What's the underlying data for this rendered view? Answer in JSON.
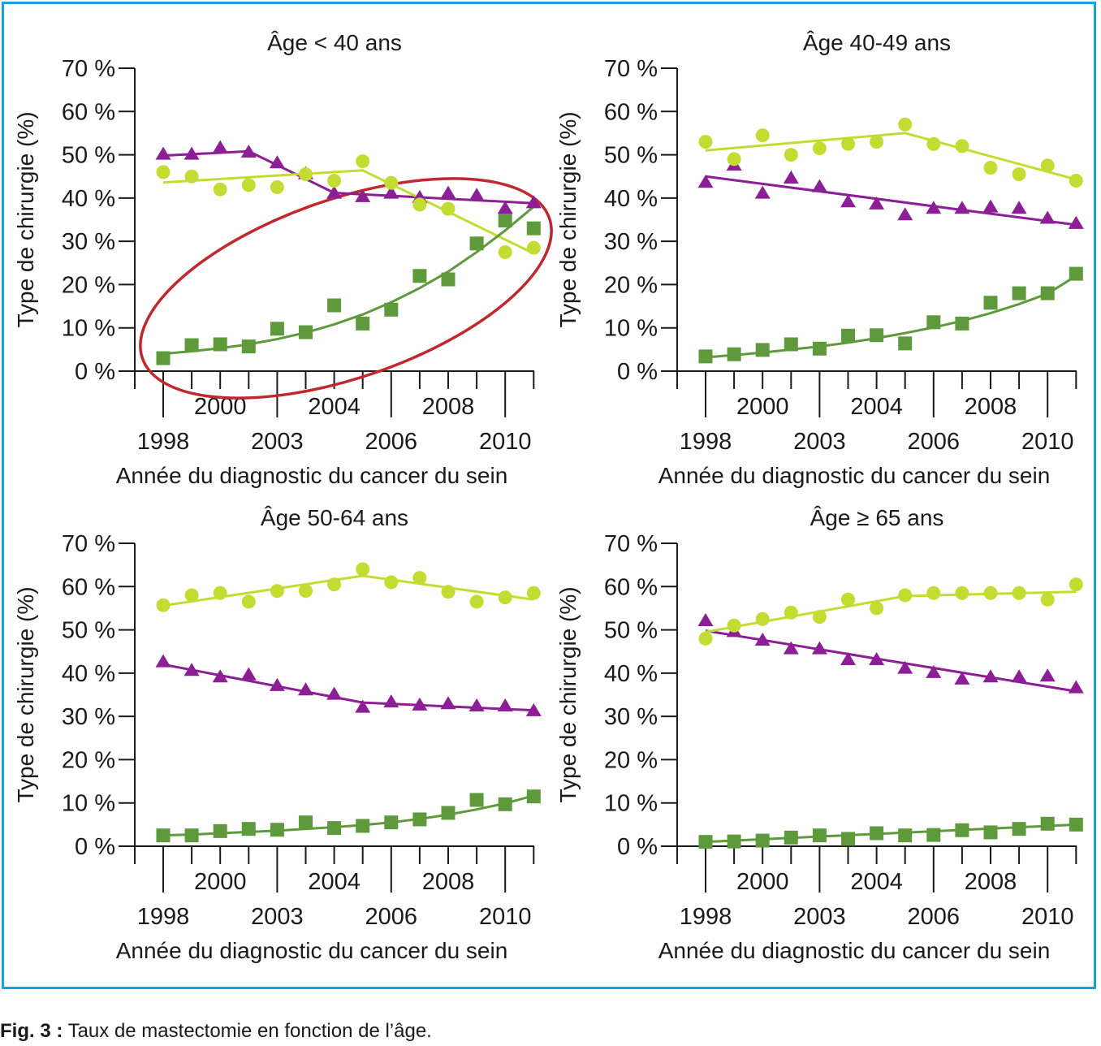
{
  "figure": {
    "caption_label": "Fig. 3 :",
    "caption_text": " Taux de mastectomie en fonction de l’âge."
  },
  "colors": {
    "frame": "#1aa0dd",
    "purple": "#8c1e96",
    "lime": "#c3dc32",
    "green": "#5e9a3c",
    "highlight_ellipse": "#c0282d",
    "axis": "#1a1a1a"
  },
  "chart_data": [
    {
      "type": "scatter",
      "title": "Âge < 40 ans",
      "ylabel": "Type de chirurgie (%)",
      "xlabel": "Année du diagnostic du cancer du sein",
      "ylim": [
        0,
        70
      ],
      "xlim": [
        1997,
        2011
      ],
      "yticks": [
        "0 %",
        "10 %",
        "20 %",
        "30 %",
        "40 %",
        "50 %",
        "60 %",
        "70 %"
      ],
      "xtick_labels_upper": [
        "2000",
        "2004",
        "2008"
      ],
      "xtick_labels_lower": [
        "1998",
        "2003",
        "2006",
        "2010"
      ],
      "x": [
        1998,
        1999,
        2000,
        2001,
        2002,
        2003,
        2004,
        2005,
        2006,
        2007,
        2008,
        2009,
        2010,
        2011
      ],
      "annotation": "ellipse-highlight",
      "series": [
        {
          "marker": "triangle",
          "color": "#8c1e96",
          "values": [
            50,
            50,
            51.5,
            50.5,
            48,
            45.5,
            41,
            40.2,
            41,
            40,
            41,
            40.5,
            37.5,
            38.8
          ],
          "trend_x": [
            1998,
            2001,
            2004,
            2011
          ],
          "trend_y": [
            49.8,
            50.8,
            41.2,
            38.8
          ]
        },
        {
          "marker": "circle",
          "color": "#c3dc32",
          "values": [
            46,
            45,
            42,
            43,
            42.5,
            45.5,
            44,
            48.5,
            43.5,
            38.5,
            37.5,
            29.5,
            27.5,
            28.5
          ],
          "trend_x": [
            1998,
            2005,
            2011
          ],
          "trend_y": [
            43.6,
            46.4,
            27.2
          ]
        },
        {
          "marker": "square",
          "color": "#5e9a3c",
          "values": [
            3,
            6,
            6.2,
            5.7,
            9.8,
            9,
            15.2,
            11,
            14.2,
            22,
            21.2,
            29.5,
            34.8,
            33
          ],
          "trend_x": [
            1998,
            1999,
            2000,
            2001,
            2002,
            2003,
            2004,
            2005,
            2006,
            2007,
            2008,
            2009,
            2010,
            2011
          ],
          "trend_y": [
            4,
            4.6,
            5.3,
            6.2,
            7.4,
            8.9,
            10.8,
            13.1,
            15.9,
            19.2,
            23,
            27.5,
            32.5,
            38
          ]
        }
      ]
    },
    {
      "type": "scatter",
      "title": "Âge 40-49 ans",
      "ylabel": "Type de chirurgie (%)",
      "xlabel": "Année du diagnostic du cancer du sein",
      "ylim": [
        0,
        70
      ],
      "xlim": [
        1997,
        2011
      ],
      "yticks": [
        "0 %",
        "10 %",
        "20 %",
        "30 %",
        "40 %",
        "50 %",
        "60 %",
        "70 %"
      ],
      "xtick_labels_upper": [
        "2000",
        "2004",
        "2008"
      ],
      "xtick_labels_lower": [
        "1998",
        "2003",
        "2006",
        "2010"
      ],
      "x": [
        1998,
        1999,
        2000,
        2001,
        2002,
        2003,
        2004,
        2005,
        2006,
        2007,
        2008,
        2009,
        2010,
        2011
      ],
      "series": [
        {
          "marker": "triangle",
          "color": "#8c1e96",
          "values": [
            43.5,
            47.5,
            41,
            44.5,
            42.5,
            39,
            38.5,
            36,
            37.5,
            37.5,
            37.8,
            37.5,
            35.2,
            34
          ],
          "trend_x": [
            1998,
            2011
          ],
          "trend_y": [
            45,
            33.8
          ]
        },
        {
          "marker": "circle",
          "color": "#c3dc32",
          "values": [
            53,
            49,
            54.5,
            50,
            51.5,
            52.5,
            53,
            57,
            52.5,
            52,
            47,
            45.5,
            47.5,
            44
          ],
          "trend_x": [
            1998,
            2005,
            2011
          ],
          "trend_y": [
            51,
            55,
            44.3
          ]
        },
        {
          "marker": "square",
          "color": "#5e9a3c",
          "values": [
            3.4,
            3.9,
            4.9,
            6.2,
            5.2,
            8.2,
            8.3,
            6.4,
            11.3,
            11,
            15.8,
            18,
            18,
            22.5
          ],
          "trend_x": [
            1998,
            1999,
            2000,
            2001,
            2002,
            2003,
            2004,
            2005,
            2006,
            2007,
            2008,
            2009,
            2010,
            2011
          ],
          "trend_y": [
            3.2,
            3.7,
            4.3,
            5,
            5.7,
            6.6,
            7.6,
            8.8,
            10.1,
            11.6,
            13.4,
            15.5,
            17.9,
            22
          ]
        }
      ]
    },
    {
      "type": "scatter",
      "title": "Âge 50-64 ans",
      "ylabel": "Type de chirurgie (%)",
      "xlabel": "Année du diagnostic du cancer du sein",
      "ylim": [
        0,
        70
      ],
      "xlim": [
        1997,
        2011
      ],
      "yticks": [
        "0 %",
        "10 %",
        "20 %",
        "30 %",
        "40 %",
        "50 %",
        "60 %",
        "70 %"
      ],
      "xtick_labels_upper": [
        "2000",
        "2004",
        "2008"
      ],
      "xtick_labels_lower": [
        "1998",
        "2003",
        "2006",
        "2010"
      ],
      "x": [
        1998,
        1999,
        2000,
        2001,
        2002,
        2003,
        2004,
        2005,
        2006,
        2007,
        2008,
        2009,
        2010,
        2011
      ],
      "series": [
        {
          "marker": "triangle",
          "color": "#8c1e96",
          "values": [
            42.5,
            40.5,
            39,
            39.5,
            37,
            36,
            35,
            32,
            33.2,
            32.5,
            32.8,
            32.3,
            32.3,
            31.2
          ],
          "trend_x": [
            1998,
            2005,
            2011
          ],
          "trend_y": [
            42,
            33.2,
            31.4
          ]
        },
        {
          "marker": "circle",
          "color": "#c3dc32",
          "values": [
            55.7,
            58,
            58.5,
            56.5,
            59,
            59,
            60.5,
            64,
            61,
            62,
            58.8,
            56.5,
            57.5,
            58.5
          ],
          "trend_x": [
            1998,
            2005,
            2011
          ],
          "trend_y": [
            55.6,
            62.5,
            57
          ]
        },
        {
          "marker": "square",
          "color": "#5e9a3c",
          "values": [
            2.5,
            2.5,
            3.5,
            4,
            3.8,
            5.5,
            4.2,
            4.7,
            5.5,
            6.2,
            7.7,
            10.7,
            9.7,
            11.5
          ],
          "trend_x": [
            1998,
            1999,
            2000,
            2001,
            2002,
            2003,
            2004,
            2005,
            2006,
            2007,
            2008,
            2009,
            2010,
            2011
          ],
          "trend_y": [
            2.5,
            2.7,
            3,
            3.3,
            3.6,
            4,
            4.4,
            4.9,
            5.5,
            6.3,
            7.3,
            8.5,
            9.9,
            11.7
          ]
        }
      ]
    },
    {
      "type": "scatter",
      "title": "Âge ≥ 65 ans",
      "ylabel": "Type de chirurgie (%)",
      "xlabel": "Année du diagnostic du cancer du sein",
      "ylim": [
        0,
        70
      ],
      "xlim": [
        1997,
        2011
      ],
      "yticks": [
        "0 %",
        "10 %",
        "20 %",
        "30 %",
        "40 %",
        "50 %",
        "60 %",
        "70 %"
      ],
      "xtick_labels_upper": [
        "2000",
        "2004",
        "2008"
      ],
      "xtick_labels_lower": [
        "1998",
        "2003",
        "2006",
        "2010"
      ],
      "x": [
        1998,
        1999,
        2000,
        2001,
        2002,
        2003,
        2004,
        2005,
        2006,
        2007,
        2008,
        2009,
        2010,
        2011
      ],
      "series": [
        {
          "marker": "triangle",
          "color": "#8c1e96",
          "values": [
            52,
            49.5,
            47.5,
            45.5,
            45.5,
            43,
            43,
            41,
            40,
            38.5,
            39,
            39,
            39.2,
            36.5
          ],
          "trend_x": [
            1998,
            2011
          ],
          "trend_y": [
            49.8,
            35.8
          ]
        },
        {
          "marker": "circle",
          "color": "#c3dc32",
          "values": [
            48,
            51,
            52.5,
            54,
            53,
            57,
            55,
            58,
            58.5,
            58.5,
            58.5,
            58.5,
            57,
            60.5
          ],
          "trend_x": [
            1998,
            2005,
            2011
          ],
          "trend_y": [
            49.5,
            57.8,
            58.8
          ]
        },
        {
          "marker": "square",
          "color": "#5e9a3c",
          "values": [
            1,
            1.1,
            1.3,
            2,
            2.5,
            1.7,
            3,
            2.5,
            2.6,
            3.7,
            3.2,
            4,
            5.2,
            5
          ],
          "trend_x": [
            1998,
            2011
          ],
          "trend_y": [
            1,
            5
          ]
        }
      ]
    }
  ]
}
